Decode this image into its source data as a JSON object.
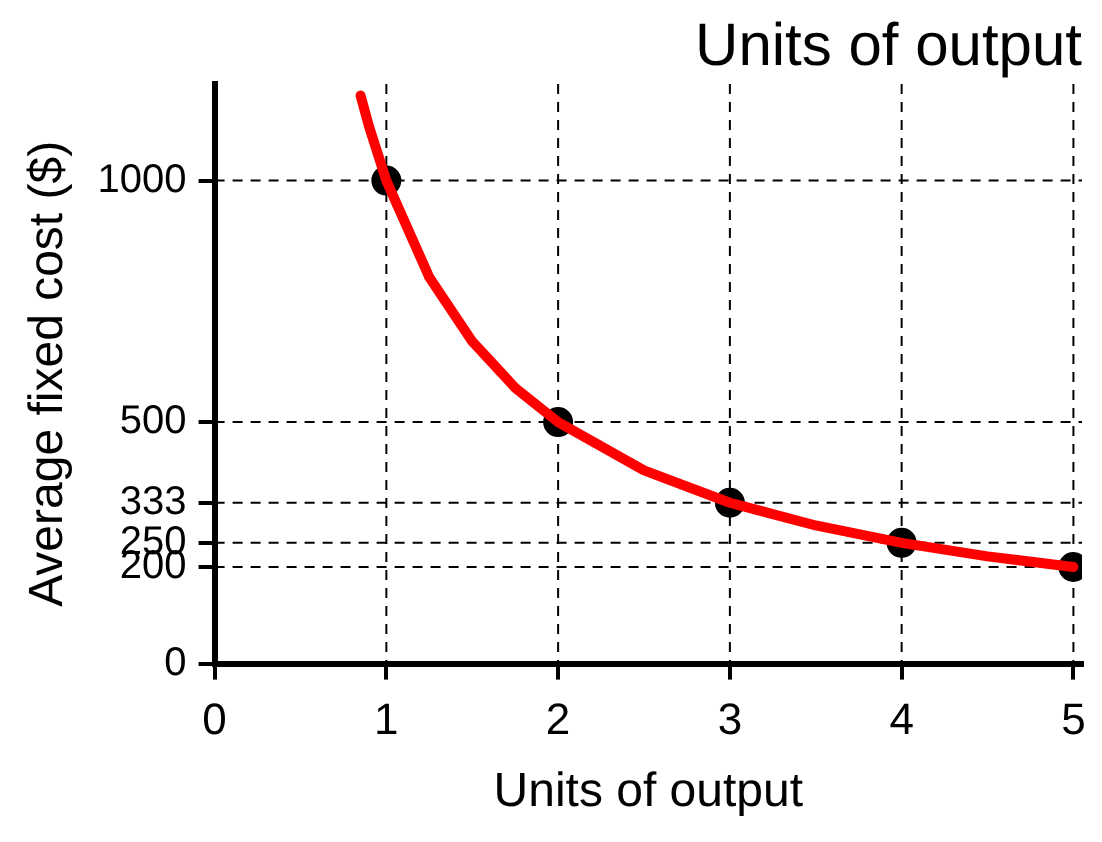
{
  "chart_data": {
    "type": "line",
    "title": "Units of output",
    "xlabel": "Units of output",
    "ylabel": "Average fixed cost ($)",
    "xlim": [
      0,
      5.05
    ],
    "xticks": [
      0,
      1,
      2,
      3,
      4,
      5
    ],
    "ylim": [
      0,
      1200
    ],
    "yticks": [
      0,
      200,
      250,
      333,
      500,
      1000
    ],
    "grid": false,
    "legend": false,
    "line_style": "dashed",
    "ref_lines": [
      {
        "axis": "y",
        "value": 1000
      },
      {
        "axis": "y",
        "value": 500
      },
      {
        "axis": "y",
        "value": 333
      },
      {
        "axis": "y",
        "value": 250
      },
      {
        "axis": "y",
        "value": 200
      },
      {
        "axis": "x",
        "value": 1
      },
      {
        "axis": "x",
        "value": 2
      },
      {
        "axis": "x",
        "value": 3
      },
      {
        "axis": "x",
        "value": 4
      },
      {
        "axis": "x",
        "value": 5
      }
    ],
    "series": [
      {
        "color": "#ff0000",
        "marker": "none",
        "line_style": "solid",
        "x": [
          0.85,
          0.9,
          1,
          1.25,
          1.5,
          1.75,
          2,
          2.5,
          3,
          3.5,
          4,
          4.5,
          5
        ],
        "values": [
          1176,
          1111,
          1000,
          800,
          667,
          571,
          500,
          400,
          333,
          286,
          250,
          222,
          200
        ]
      },
      {
        "type": "scatter",
        "color": "#000000",
        "marker": "circle",
        "x": [
          1,
          2,
          3,
          4,
          5
        ],
        "values": [
          1000,
          500,
          333,
          250,
          200
        ]
      }
    ]
  }
}
